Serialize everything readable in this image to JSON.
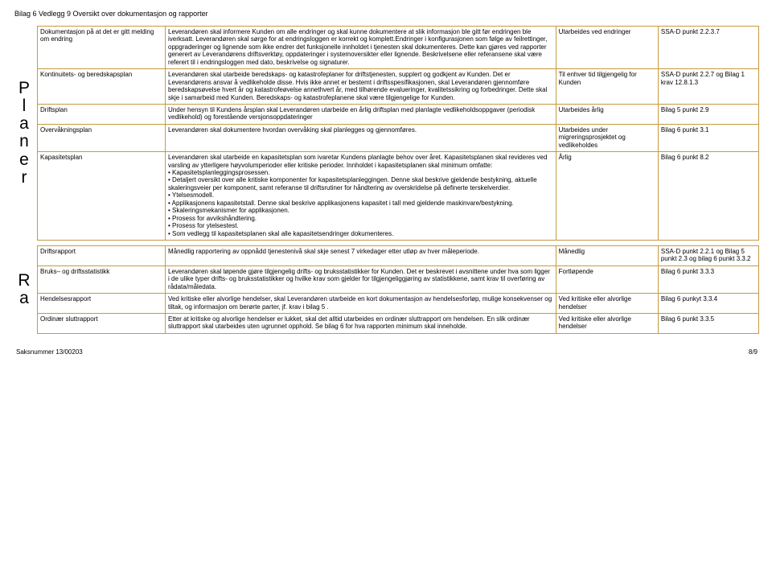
{
  "doc_title": "Bilag 6 Vedlegg 9 Oversikt over dokumentasjon og rapporter",
  "side_labels": {
    "planer": [
      "P",
      "l",
      "a",
      "n",
      "e",
      "r"
    ],
    "ra": [
      "R",
      "a"
    ]
  },
  "colors": {
    "border": "#c69b3e",
    "text": "#000000",
    "background": "#ffffff"
  },
  "rows_top": [
    {
      "c1": "Dokumentasjon på at det er gitt melding om endring",
      "c2": "Leverandøren skal informere Kunden om alle endringer og skal kunne dokumentere at slik informasjon ble gitt før endringen ble iverksatt. Leverandøren skal sørge for at endringsloggen er korrekt og komplett.Endringer i konfigurasjonen som følge av feilrettinger, oppgraderinger og lignende som ikke endrer det funksjonelle innholdet i tjenesten skal dokumenteres. Dette kan gjøres ved rapporter generert av Leverandørens driftsverktøy, oppdateringer i systemoversikter eller lignende. Beskrivelsene eller referansene skal være referert til i endringsloggen med dato, beskrivelse og signaturer.",
      "c3": "Utarbeides ved endringer",
      "c4": "SSA-D punkt 2.2.3.7"
    },
    {
      "c1": "Kontinuitets- og beredskapsplan",
      "c2": "Leverandøren skal utarbeide beredskaps- og katastrofeplaner for driftstjenesten, supplert og godkjent av Kunden. Det er Leverandørens ansvar å vedlikeholde disse. Hvis ikke annet er bestemt i driftsspesifikasjonen, skal Leverandøren gjennomføre beredskapsøvelse hvert år og katastrofeøvelse annethvert år, med tilhørende evalueringer, kvalitetssikring og forbedringer. Dette skal skje i samarbeid med Kunden. Beredskaps- og katastrofeplanene skal være tilgjengelige for Kunden.",
      "c3": "Til enhver tid tilgjengelig for Kunden",
      "c4": "SSA-D punkt 2.2.7 og Bilag 1 krav 12.8.1.3"
    },
    {
      "c1": "Driftsplan",
      "c2": "Under hensyn til Kundens årsplan skal Leverandøren utarbeide en årlig driftsplan med planlagte vedlikeholdsoppgaver (periodisk vedlikehold) og forestående versjonsoppdateringer",
      "c3": "Utarbeides årlig",
      "c4": "Bilag 5 punkt 2.9"
    },
    {
      "c1": "Overvåkningsplan",
      "c2": "Leverandøren skal dokumentere hvordan overvåking skal planlegges og gjennomføres.",
      "c3": "Utarbeides under migreringsprosjektet og vedlikeholdes",
      "c4": "Bilag 6 punkt 3.1"
    },
    {
      "c1": "Kapasitetsplan",
      "c2": "Leverandøren skal utarbeide en kapasitetsplan som ivaretar Kundens planlagte behov over året. Kapasitetsplanen skal revideres ved varsling av ytterligere høyvolumperioder eller kritiske perioder. Innholdet i kapasitetsplanen skal minimum omfatte:\n• Kapasitetsplanleggingsprosessen.\n• Detaljert oversikt over alle kritiske komponenter for kapasitetsplanleggingen. Denne skal beskrive gjeldende bestykning, aktuelle skaleringsveier per komponent, samt referanse til driftsrutiner for håndtering av overskridelse på definerte terskelverdier.\n• Ytelsesmodell.\n• Applikasjonens kapasitetstall. Denne skal beskrive applikasjonens kapasitet i tall med gjeldende maskinvare/bestykning.\n• Skaleringsmekanismer for applikasjonen.\n• Prosess for avvikshåndtering.\n• Prosess for ytelsestest.\n• Som vedlegg til kapasitetsplanen skal alle kapasitetsendringer dokumenteres.",
      "c3": "Årlig",
      "c4": "Bilag 6 punkt 8.2"
    }
  ],
  "rows_bottom": [
    {
      "c1": "Driftsrapport",
      "c2": "Månedlig rapportering av oppnådd tjenestenivå skal skje senest 7 virkedager etter utløp av hver måleperiode.",
      "c3": "Månedlig",
      "c4": "SSA-D punkt 2.2.1 og Bilag 5 punkt 2.3 og bilag 6 punkt 3.3.2"
    },
    {
      "c1": "Bruks– og driftsstatistikk",
      "c2": "Leverandøren skal løpende gjøre tilgjengelig drifts- og bruksstatistikker for Kunden. Det er beskrevet i avsnittene under hva som ligger i de ulike typer drifts- og bruksstatistikker og hvilke krav som gjelder for tilgjengeliggjøring av statistikkene, samt krav til overføring av rådata/måledata.",
      "c3": "Fortløpende",
      "c4": "Bilag 6 punkt 3.3.3"
    },
    {
      "c1": "Hendelsesrapport",
      "c2": "Ved kritiske eller alvorlige hendelser, skal Leverandøren utarbeide en kort dokumentasjon av hendelsesforløp, mulige konsekvenser og tiltak, og informasjon om berørte parter, jf. krav i bilag 5 .",
      "c3": "Ved kritiske eller alvorlige hendelser",
      "c4": "Bilag 6 punkyt 3.3.4"
    },
    {
      "c1": "Ordinær sluttrapport",
      "c2": "Etter at kritiske og alvorlige hendelser er lukket, skal det alltid utarbeides en ordinær sluttrapport om hendelsen. En slik ordinær sluttrapport skal utarbeides uten ugrunnet opphold. Se bilag 6 for hva rapporten minimum skal inneholde.",
      "c3": "Ved kritiske eller alvorlige hendelser",
      "c4": "Bilag 6 punkt 3.3.5"
    }
  ],
  "footer": {
    "left": "Saksnummer 13/00203",
    "right": "8/9"
  }
}
